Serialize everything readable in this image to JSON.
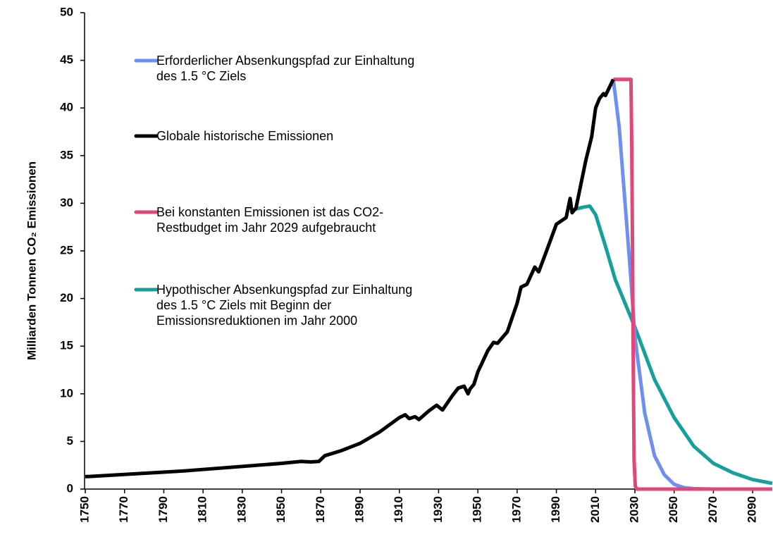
{
  "chart_data": {
    "type": "line",
    "ylabel": "Milliarden Tonnen  CO₂ Emissionen",
    "xlim": [
      1750,
      2100
    ],
    "ylim": [
      0,
      50
    ],
    "xticks": [
      1750,
      1770,
      1790,
      1810,
      1830,
      1850,
      1870,
      1890,
      1910,
      1930,
      1950,
      1970,
      1990,
      2010,
      2030,
      2050,
      2070,
      2090
    ],
    "yticks": [
      0,
      5,
      10,
      15,
      20,
      25,
      30,
      35,
      40,
      45,
      50
    ],
    "series": [
      {
        "name": "Erforderlicher Absenkungspfad zur Einhaltung des 1.5 °C Ziels",
        "color": "#6f8ff0",
        "x": [
          2019,
          2022,
          2025,
          2028,
          2030,
          2035,
          2040,
          2045,
          2050,
          2055,
          2060,
          2070,
          2100
        ],
        "values": [
          43,
          38,
          30,
          22,
          16,
          8,
          3.5,
          1.5,
          0.5,
          0.15,
          0.05,
          0,
          0
        ]
      },
      {
        "name": "Globale historische Emissionen",
        "color": "#000000",
        "x": [
          1750,
          1800,
          1850,
          1860,
          1865,
          1869,
          1872,
          1880,
          1890,
          1900,
          1910,
          1913,
          1915,
          1918,
          1920,
          1925,
          1929,
          1932,
          1937,
          1940,
          1943,
          1945,
          1946,
          1948,
          1950,
          1955,
          1958,
          1960,
          1965,
          1970,
          1972,
          1975,
          1979,
          1981,
          1985,
          1990,
          1995,
          1997,
          1998,
          2000,
          2003,
          2005,
          2008,
          2010,
          2012,
          2014,
          2015,
          2019
        ],
        "values": [
          1.3,
          1.9,
          2.7,
          2.9,
          2.85,
          2.9,
          3.5,
          4.0,
          4.8,
          6.0,
          7.5,
          7.8,
          7.4,
          7.6,
          7.3,
          8.2,
          8.8,
          8.3,
          9.8,
          10.6,
          10.8,
          10.0,
          10.5,
          11.0,
          12.3,
          14.5,
          15.4,
          15.3,
          16.5,
          19.5,
          21.2,
          21.5,
          23.3,
          22.8,
          25.0,
          27.8,
          28.5,
          30.5,
          29.0,
          29.5,
          32.5,
          34.5,
          37.0,
          40.0,
          41.0,
          41.5,
          41.3,
          43.0
        ]
      },
      {
        "name": "Bei konstanten Emissionen ist das CO2-Restbudget im Jahr 2029 aufgebraucht",
        "color": "#e2477a",
        "x": [
          2019,
          2028,
          2028.4,
          2028.8,
          2029.2,
          2029.6,
          2030.2,
          2031,
          2100
        ],
        "values": [
          43,
          43,
          36,
          25,
          12,
          3,
          0.3,
          0,
          0
        ]
      },
      {
        "name": "Hypothischer Absenkungspfad zur Einhaltung des 1.5 °C Ziels mit Beginn der Emissionsreduktionen im Jahr 2000",
        "color": "#16a09a",
        "x": [
          2000,
          2004,
          2007,
          2010,
          2015,
          2020,
          2025,
          2030,
          2040,
          2050,
          2060,
          2070,
          2080,
          2090,
          2100
        ],
        "values": [
          29.4,
          29.6,
          29.7,
          28.8,
          25.5,
          22,
          19.5,
          17,
          11.5,
          7.5,
          4.5,
          2.7,
          1.7,
          1.0,
          0.6
        ]
      }
    ]
  }
}
